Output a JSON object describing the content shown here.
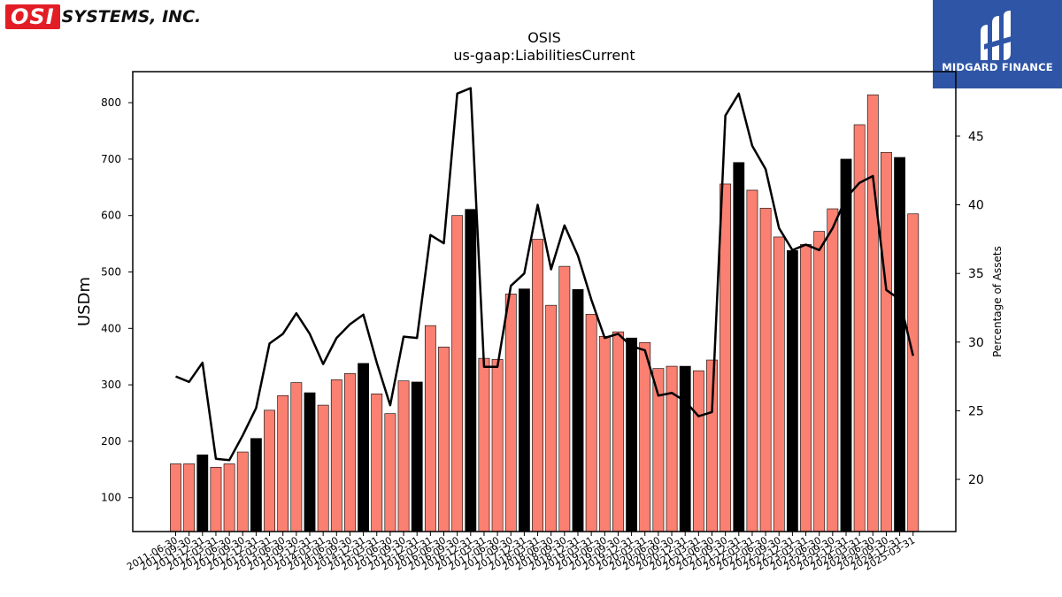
{
  "logos": {
    "left": {
      "highlight": "OSI",
      "rest": "SYSTEMS, INC.",
      "color": "#e31d25"
    },
    "right": {
      "brand": "MIDGARD FINANCE",
      "background": "#2f56a6"
    }
  },
  "chart_data": {
    "type": "bar",
    "title": "OSIS",
    "subtitle": "us-gaap:LiabilitiesCurrent",
    "ylabel": "USDm",
    "y2label": "Percentage of Assets",
    "ylim": [
      40,
      855
    ],
    "y2lim": [
      16.2,
      49.7
    ],
    "yticks": [
      100,
      200,
      300,
      400,
      500,
      600,
      700,
      800
    ],
    "y2ticks": [
      20,
      25,
      30,
      35,
      40,
      45
    ],
    "grid": false,
    "colors": {
      "bar": "#fa8072",
      "bar_highlight": "#000000",
      "line": "#000000"
    },
    "categories": [
      "2011-06-30",
      "2011-09-30",
      "2011-12-31",
      "2012-03-31",
      "2012-06-30",
      "2012-09-30",
      "2012-12-31",
      "2013-03-31",
      "2013-06-30",
      "2013-09-30",
      "2013-12-31",
      "2014-03-31",
      "2014-06-30",
      "2014-09-30",
      "2014-12-31",
      "2015-03-31",
      "2015-06-30",
      "2015-09-30",
      "2015-12-31",
      "2016-03-31",
      "2016-06-30",
      "2016-09-30",
      "2016-12-31",
      "2017-03-31",
      "2017-06-30",
      "2017-09-30",
      "2017-12-31",
      "2018-03-31",
      "2018-06-30",
      "2018-09-30",
      "2018-12-31",
      "2019-03-31",
      "2019-06-30",
      "2019-09-30",
      "2019-12-31",
      "2020-03-31",
      "2020-06-30",
      "2020-09-30",
      "2020-12-31",
      "2021-03-31",
      "2021-06-30",
      "2021-09-30",
      "2021-12-31",
      "2022-03-31",
      "2022-06-30",
      "2022-09-30",
      "2022-12-31",
      "2023-03-31",
      "2023-06-30",
      "2023-09-30",
      "2023-12-31",
      "2024-03-31",
      "2024-06-30",
      "2024-09-30",
      "2024-12-31",
      "2025-03-31"
    ],
    "series": [
      {
        "kind": "bar",
        "values": [
          160,
          160,
          176,
          154,
          160,
          181,
          205,
          255,
          281,
          304,
          286,
          264,
          309,
          320,
          338,
          284,
          249,
          307,
          305,
          405,
          367,
          600,
          611,
          347,
          345,
          461,
          470,
          558,
          441,
          510,
          469,
          425,
          386,
          394,
          383,
          375,
          329,
          333,
          333,
          325,
          344,
          656,
          694,
          645,
          613,
          562,
          538,
          549,
          572,
          612,
          700,
          761,
          814,
          712,
          703,
          603
        ],
        "highlight": [
          false,
          false,
          true,
          false,
          false,
          false,
          true,
          false,
          false,
          false,
          true,
          false,
          false,
          false,
          true,
          false,
          false,
          false,
          true,
          false,
          false,
          false,
          true,
          false,
          false,
          false,
          true,
          false,
          false,
          false,
          true,
          false,
          false,
          false,
          true,
          false,
          false,
          false,
          true,
          false,
          false,
          false,
          true,
          false,
          false,
          false,
          true,
          false,
          false,
          false,
          true,
          false,
          false,
          false,
          true,
          false
        ]
      },
      {
        "kind": "line",
        "axis": "right",
        "values": [
          27.5,
          27.1,
          28.5,
          21.5,
          21.4,
          23.2,
          25.2,
          29.9,
          30.6,
          32.1,
          30.6,
          28.4,
          30.3,
          31.3,
          32.0,
          28.5,
          25.4,
          30.4,
          30.3,
          37.8,
          37.2,
          48.1,
          48.5,
          28.2,
          28.2,
          34.1,
          35.0,
          40.0,
          35.3,
          38.5,
          36.3,
          33.1,
          30.3,
          30.6,
          29.7,
          29.4,
          26.1,
          26.3,
          25.7,
          24.6,
          24.9,
          46.5,
          48.1,
          44.3,
          42.6,
          38.3,
          36.7,
          37.1,
          36.7,
          38.3,
          40.5,
          41.6,
          42.1,
          33.8,
          33.1,
          29.0
        ]
      }
    ]
  }
}
